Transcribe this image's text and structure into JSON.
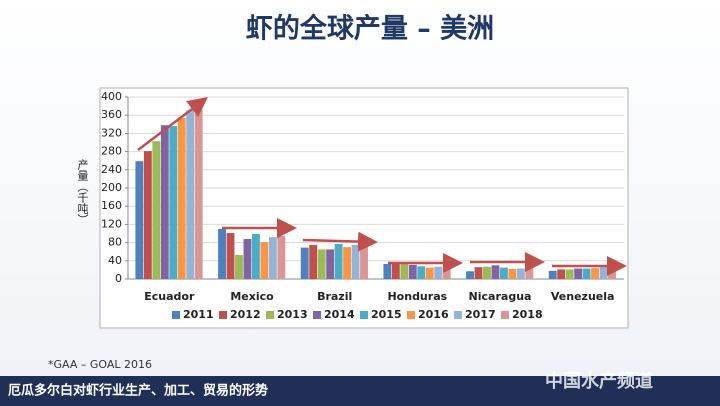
{
  "chart_data": {
    "type": "bar",
    "title": "虾的全球产量 – 美洲",
    "y_label": "产量（千吨）",
    "categories": [
      "Ecuador",
      "Mexico",
      "Brazil",
      "Honduras",
      "Nicaragua",
      "Venezuela"
    ],
    "series": [
      {
        "name": "2011",
        "color": "#4f81bd",
        "values": [
          259,
          110,
          69,
          33,
          17,
          18
        ]
      },
      {
        "name": "2012",
        "color": "#c0504d",
        "values": [
          281,
          101,
          75,
          34,
          26,
          21
        ]
      },
      {
        "name": "2013",
        "color": "#9bbb59",
        "values": [
          303,
          53,
          65,
          33,
          27,
          21
        ]
      },
      {
        "name": "2014",
        "color": "#8064a2",
        "values": [
          338,
          88,
          65,
          31,
          30,
          23
        ]
      },
      {
        "name": "2015",
        "color": "#4bacc6",
        "values": [
          336,
          99,
          77,
          28,
          25,
          23
        ]
      },
      {
        "name": "2016",
        "color": "#f79646",
        "values": [
          354,
          81,
          70,
          25,
          22,
          24
        ]
      },
      {
        "name": "2017",
        "color": "#95b3d7",
        "values": [
          371,
          92,
          75,
          27,
          23,
          27
        ]
      },
      {
        "name": "2018",
        "color": "#d99694",
        "values": [
          385,
          95,
          75,
          27,
          24,
          28
        ]
      }
    ],
    "ylim": [
      0,
      400
    ],
    "yticks": [
      0,
      40,
      80,
      120,
      160,
      200,
      240,
      280,
      320,
      360,
      400
    ],
    "grid": true
  },
  "slide": {
    "footnote": "*GAA – GOAL 2016",
    "banner": "厄瓜多尔白对虾行业生产、加工、贸易的形势",
    "watermark": "中国水产频道"
  }
}
